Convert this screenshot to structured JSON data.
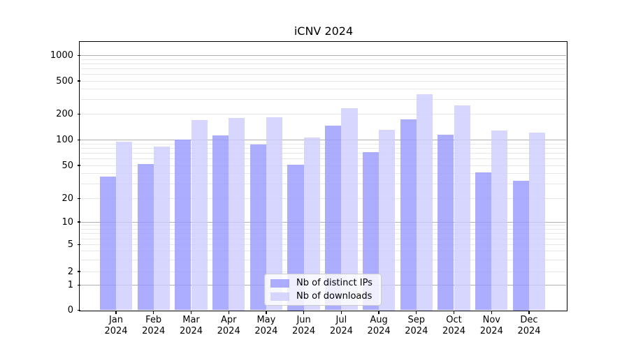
{
  "title": "iCNV 2024",
  "chart_data": {
    "type": "bar",
    "title": "iCNV 2024",
    "categories": [
      "Jan 2024",
      "Feb 2024",
      "Mar 2024",
      "Apr 2024",
      "May 2024",
      "Jun 2024",
      "Jul 2024",
      "Aug 2024",
      "Sep 2024",
      "Oct 2024",
      "Nov 2024",
      "Dec 2024"
    ],
    "series": [
      {
        "name": "Nb of distinct IPs",
        "color": "#9999ff",
        "values": [
          37,
          52,
          100,
          112,
          89,
          51,
          147,
          72,
          174,
          115,
          41,
          33
        ]
      },
      {
        "name": "Nb of downloads",
        "color": "#ccccff",
        "values": [
          96,
          84,
          170,
          180,
          182,
          106,
          235,
          131,
          350,
          254,
          128,
          122
        ]
      }
    ],
    "xlabel": "",
    "ylabel": "",
    "yscale": "symlog",
    "yticks": [
      0,
      1,
      2,
      5,
      10,
      20,
      50,
      100,
      200,
      500,
      1000
    ],
    "ylim": [
      0,
      1400
    ],
    "grid": true,
    "legend_position": "lower center",
    "grid_major_color": "#b0b0b0",
    "grid_minor_color": "#e8e8e8"
  }
}
